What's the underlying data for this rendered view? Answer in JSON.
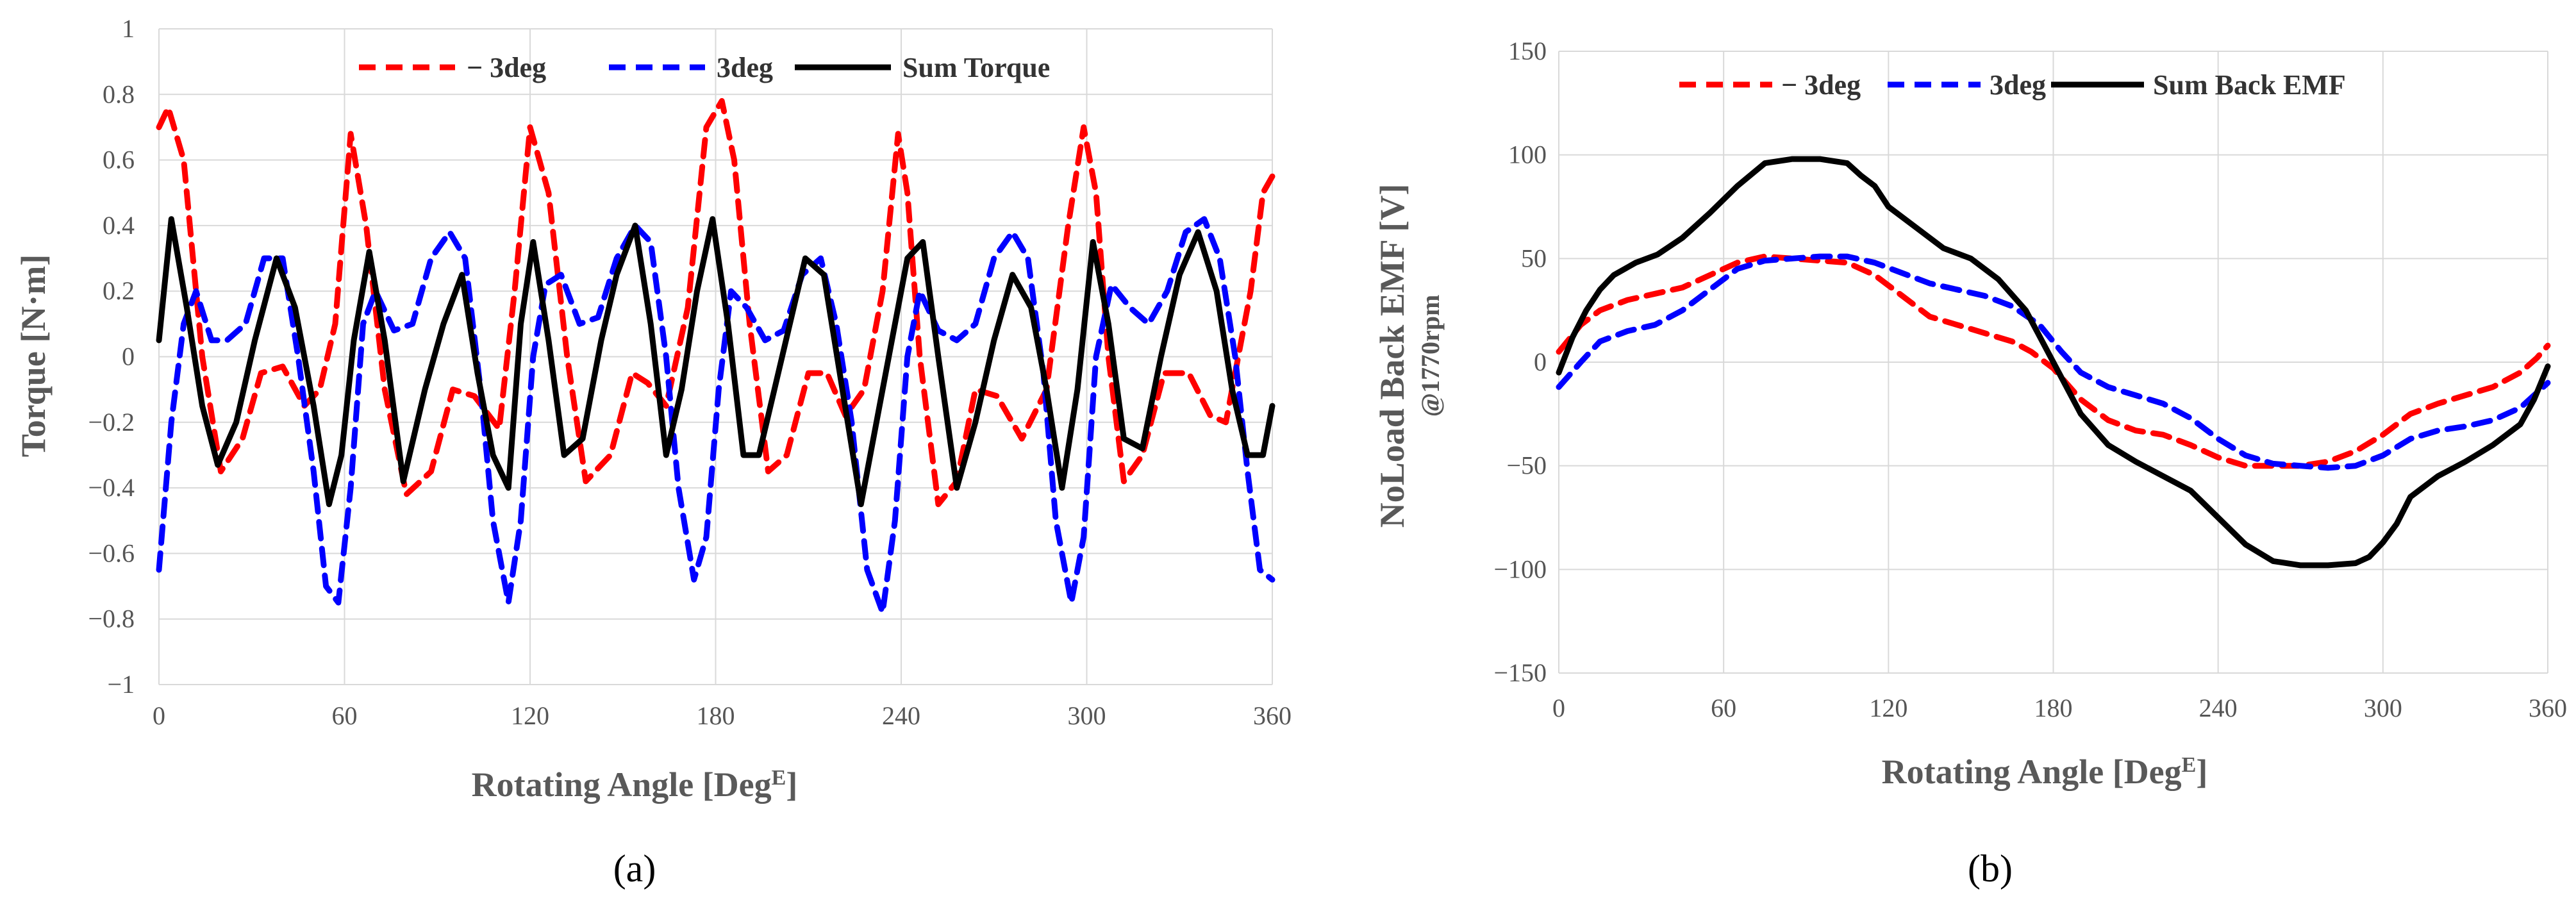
{
  "chart_data": [
    {
      "id": "a",
      "type": "line",
      "caption": "(a)",
      "title": "",
      "xlabel": "Rotating Angle [Deg",
      "xlabel_sup": "E",
      "xlabel_end": "]",
      "ylabel": "Torque [N·m]",
      "xlim": [
        0,
        360
      ],
      "ylim": [
        -1,
        1
      ],
      "xticks": [
        0,
        60,
        120,
        180,
        240,
        300,
        360
      ],
      "xtick_labels": [
        "0",
        "60",
        "120",
        "180",
        "240",
        "300",
        "360"
      ],
      "yticks": [
        1,
        0.8,
        0.6,
        0.4,
        0.2,
        0,
        -0.2,
        -0.4,
        -0.6,
        -0.8,
        -1
      ],
      "ytick_labels": [
        "1",
        "0.8",
        "0.6",
        "0.4",
        "0.2",
        "0",
        "−0.2",
        "−0.4",
        "−0.6",
        "−0.8",
        "−1"
      ],
      "legend_position": "top",
      "series": [
        {
          "name": "− 3deg",
          "color": "#ff0000",
          "style": "dashed",
          "x": [
            0,
            3,
            8,
            14,
            20,
            27,
            33,
            40,
            47,
            52,
            57,
            62,
            67,
            73,
            80,
            88,
            95,
            102,
            110,
            115,
            120,
            126,
            132,
            138,
            146,
            153,
            158,
            164,
            171,
            177,
            182,
            186,
            191,
            197,
            203,
            210,
            216,
            222,
            228,
            234,
            239,
            242,
            246,
            252,
            258,
            264,
            271,
            279,
            287,
            294,
            299,
            303,
            307,
            312,
            318,
            325,
            333,
            340,
            345,
            349,
            353,
            357,
            360
          ],
          "y": [
            0.7,
            0.76,
            0.6,
            0.0,
            -0.35,
            -0.25,
            -0.05,
            -0.03,
            -0.15,
            -0.1,
            0.1,
            0.68,
            0.4,
            -0.1,
            -0.42,
            -0.35,
            -0.1,
            -0.12,
            -0.22,
            0.2,
            0.7,
            0.5,
            0.0,
            -0.38,
            -0.3,
            -0.05,
            -0.08,
            -0.15,
            0.15,
            0.7,
            0.78,
            0.6,
            0.1,
            -0.35,
            -0.3,
            -0.05,
            -0.05,
            -0.18,
            -0.1,
            0.2,
            0.68,
            0.5,
            0.0,
            -0.45,
            -0.38,
            -0.1,
            -0.12,
            -0.25,
            -0.1,
            0.4,
            0.7,
            0.5,
            0.0,
            -0.38,
            -0.3,
            -0.05,
            -0.05,
            -0.18,
            -0.2,
            0.0,
            0.2,
            0.5,
            0.55
          ]
        },
        {
          "name": "3deg",
          "color": "#0000ff",
          "style": "dashed",
          "x": [
            0,
            4,
            8,
            12,
            17,
            22,
            28,
            34,
            40,
            45,
            50,
            54,
            58,
            62,
            66,
            70,
            76,
            82,
            88,
            94,
            99,
            104,
            108,
            113,
            117,
            121,
            125,
            130,
            136,
            142,
            148,
            154,
            159,
            164,
            168,
            173,
            177,
            181,
            185,
            190,
            196,
            202,
            208,
            214,
            219,
            224,
            229,
            234,
            238,
            242,
            246,
            252,
            258,
            264,
            270,
            276,
            281,
            286,
            290,
            295,
            299,
            303,
            308,
            314,
            320,
            326,
            332,
            338,
            343,
            348,
            352,
            356,
            360
          ],
          "y": [
            -0.65,
            -0.2,
            0.1,
            0.2,
            0.05,
            0.05,
            0.1,
            0.3,
            0.3,
            0.0,
            -0.35,
            -0.7,
            -0.75,
            -0.4,
            0.1,
            0.2,
            0.08,
            0.1,
            0.3,
            0.38,
            0.3,
            -0.1,
            -0.5,
            -0.75,
            -0.5,
            0.0,
            0.22,
            0.25,
            0.1,
            0.12,
            0.3,
            0.4,
            0.35,
            0.0,
            -0.4,
            -0.68,
            -0.55,
            -0.1,
            0.2,
            0.15,
            0.05,
            0.08,
            0.25,
            0.3,
            0.1,
            -0.2,
            -0.65,
            -0.78,
            -0.5,
            0.0,
            0.2,
            0.08,
            0.05,
            0.1,
            0.3,
            0.38,
            0.3,
            -0.05,
            -0.5,
            -0.75,
            -0.55,
            0.0,
            0.22,
            0.15,
            0.1,
            0.2,
            0.38,
            0.42,
            0.3,
            0.0,
            -0.35,
            -0.65,
            -0.68
          ]
        },
        {
          "name": "Sum Torque",
          "color": "#000000",
          "style": "solid",
          "x": [
            0,
            4,
            9,
            14,
            19,
            25,
            31,
            38,
            44,
            50,
            55,
            59,
            63,
            68,
            73,
            79,
            86,
            92,
            98,
            103,
            108,
            113,
            117,
            121,
            126,
            131,
            137,
            143,
            148,
            154,
            159,
            164,
            169,
            174,
            179,
            184,
            189,
            194,
            199,
            204,
            209,
            215,
            221,
            227,
            232,
            237,
            242,
            247,
            252,
            258,
            264,
            270,
            276,
            282,
            287,
            292,
            297,
            302,
            307,
            312,
            318,
            324,
            330,
            336,
            342,
            347,
            352,
            357,
            360
          ],
          "y": [
            0.05,
            0.42,
            0.15,
            -0.15,
            -0.33,
            -0.2,
            0.05,
            0.3,
            0.15,
            -0.15,
            -0.45,
            -0.3,
            0.05,
            0.32,
            0.05,
            -0.38,
            -0.1,
            0.1,
            0.25,
            -0.05,
            -0.3,
            -0.4,
            0.1,
            0.35,
            0.05,
            -0.3,
            -0.25,
            0.05,
            0.25,
            0.4,
            0.1,
            -0.3,
            -0.1,
            0.2,
            0.42,
            0.1,
            -0.3,
            -0.3,
            -0.1,
            0.1,
            0.3,
            0.25,
            -0.1,
            -0.45,
            -0.2,
            0.05,
            0.3,
            0.35,
            0.0,
            -0.4,
            -0.2,
            0.05,
            0.25,
            0.15,
            -0.1,
            -0.4,
            -0.1,
            0.35,
            0.1,
            -0.25,
            -0.28,
            0.0,
            0.25,
            0.38,
            0.2,
            -0.1,
            -0.3,
            -0.3,
            -0.15
          ]
        }
      ]
    },
    {
      "id": "b",
      "type": "line",
      "caption": "(b)",
      "title": "",
      "xlabel": "Rotating Angle [Deg",
      "xlabel_sup": "E",
      "xlabel_end": "]",
      "ylabel": "NoLoad Back EMF [V]",
      "ylabel_sub": "@1770rpm",
      "xlim": [
        0,
        360
      ],
      "ylim": [
        -150,
        150
      ],
      "xticks": [
        0,
        60,
        120,
        180,
        240,
        300,
        360
      ],
      "xtick_labels": [
        "0",
        "60",
        "120",
        "180",
        "240",
        "300",
        "360"
      ],
      "yticks": [
        150,
        100,
        50,
        0,
        -50,
        -100,
        -150
      ],
      "ytick_labels": [
        "150",
        "100",
        "50",
        "0",
        "−50",
        "−100",
        "−150"
      ],
      "legend_position": "top",
      "series": [
        {
          "name": "− 3deg",
          "color": "#ff0000",
          "style": "dashed",
          "x": [
            0,
            8,
            15,
            25,
            35,
            45,
            55,
            65,
            75,
            85,
            95,
            105,
            115,
            125,
            135,
            145,
            155,
            165,
            172,
            180,
            190,
            200,
            210,
            220,
            230,
            240,
            250,
            260,
            270,
            280,
            290,
            300,
            310,
            320,
            330,
            340,
            350,
            356,
            360
          ],
          "y": [
            5,
            18,
            25,
            30,
            33,
            36,
            42,
            48,
            51,
            50,
            49,
            48,
            42,
            32,
            22,
            18,
            14,
            10,
            5,
            -3,
            -18,
            -28,
            -33,
            -35,
            -40,
            -46,
            -50,
            -50,
            -50,
            -48,
            -43,
            -35,
            -25,
            -20,
            -16,
            -12,
            -5,
            2,
            8
          ]
        },
        {
          "name": "3deg",
          "color": "#0000ff",
          "style": "dashed",
          "x": [
            0,
            8,
            15,
            25,
            35,
            45,
            55,
            65,
            75,
            85,
            95,
            105,
            115,
            125,
            135,
            145,
            155,
            165,
            175,
            183,
            190,
            200,
            210,
            220,
            230,
            240,
            250,
            260,
            270,
            280,
            290,
            300,
            310,
            320,
            330,
            340,
            350,
            360
          ],
          "y": [
            -12,
            0,
            10,
            15,
            18,
            25,
            35,
            45,
            49,
            50,
            51,
            51,
            48,
            43,
            38,
            35,
            32,
            27,
            18,
            5,
            -5,
            -12,
            -16,
            -20,
            -27,
            -37,
            -45,
            -49,
            -50,
            -51,
            -50,
            -45,
            -37,
            -33,
            -31,
            -28,
            -22,
            -10
          ]
        },
        {
          "name": "Sum Back EMF",
          "color": "#000000",
          "style": "solid",
          "x": [
            0,
            5,
            10,
            15,
            20,
            28,
            36,
            45,
            55,
            65,
            75,
            85,
            95,
            105,
            110,
            115,
            120,
            130,
            140,
            150,
            160,
            170,
            180,
            190,
            200,
            210,
            220,
            230,
            240,
            250,
            260,
            270,
            280,
            290,
            295,
            300,
            305,
            310,
            320,
            330,
            340,
            350,
            355,
            360
          ],
          "y": [
            -5,
            12,
            25,
            35,
            42,
            48,
            52,
            60,
            72,
            85,
            96,
            98,
            98,
            96,
            90,
            85,
            75,
            65,
            55,
            50,
            40,
            25,
            0,
            -25,
            -40,
            -48,
            -55,
            -62,
            -75,
            -88,
            -96,
            -98,
            -98,
            -97,
            -94,
            -87,
            -78,
            -65,
            -55,
            -48,
            -40,
            -30,
            -18,
            -2
          ]
        }
      ]
    }
  ]
}
